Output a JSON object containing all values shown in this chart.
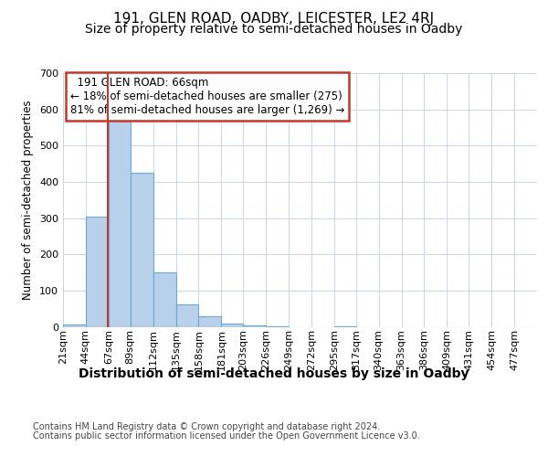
{
  "title1": "191, GLEN ROAD, OADBY, LEICESTER, LE2 4RJ",
  "title2": "Size of property relative to semi-detached houses in Oadby",
  "xlabel": "Distribution of semi-detached houses by size in Oadby",
  "ylabel": "Number of semi-detached properties",
  "footer1": "Contains HM Land Registry data © Crown copyright and database right 2024.",
  "footer2": "Contains public sector information licensed under the Open Government Licence v3.0.",
  "bin_labels": [
    "21sqm",
    "44sqm",
    "67sqm",
    "89sqm",
    "112sqm",
    "135sqm",
    "158sqm",
    "181sqm",
    "203sqm",
    "226sqm",
    "249sqm",
    "272sqm",
    "295sqm",
    "317sqm",
    "340sqm",
    "363sqm",
    "386sqm",
    "409sqm",
    "431sqm",
    "454sqm",
    "477sqm"
  ],
  "bin_edges": [
    21,
    44,
    67,
    89,
    112,
    135,
    158,
    181,
    203,
    226,
    249,
    272,
    295,
    317,
    340,
    363,
    386,
    409,
    431,
    454,
    477,
    500
  ],
  "bar_values": [
    7,
    305,
    575,
    425,
    150,
    63,
    30,
    10,
    5,
    1,
    0,
    0,
    1,
    0,
    0,
    0,
    0,
    0,
    0,
    0,
    0
  ],
  "bar_color": "#b8d0ea",
  "bar_edge_color": "#6aaad4",
  "property_size": 66,
  "property_label": "191 GLEN ROAD: 66sqm",
  "pct_smaller": 18,
  "count_smaller": 275,
  "pct_larger": 81,
  "count_larger": 1269,
  "vline_color": "#c0392b",
  "annotation_box_color": "#c0392b",
  "ylim": [
    0,
    700
  ],
  "yticks": [
    0,
    100,
    200,
    300,
    400,
    500,
    600,
    700
  ],
  "background_color": "#ffffff",
  "grid_color": "#c8d4e8",
  "title1_fontsize": 11,
  "title2_fontsize": 10,
  "xlabel_fontsize": 10,
  "ylabel_fontsize": 8.5,
  "tick_fontsize": 8,
  "annotation_fontsize": 8.5,
  "footer_fontsize": 7
}
